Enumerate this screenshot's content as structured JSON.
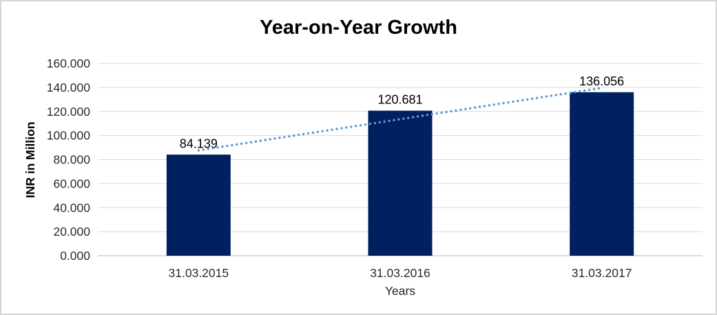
{
  "frame": {
    "background_color": "#FFFFFF",
    "border_color": "#D4D4D4"
  },
  "chart_data": {
    "type": "bar",
    "title": "Year-on-Year Growth",
    "xlabel": "Years",
    "ylabel": "INR in Million",
    "categories": [
      "31.03.2015",
      "31.03.2016",
      "31.03.2017"
    ],
    "values": [
      84.139,
      120.681,
      136.056
    ],
    "data_labels": [
      "84.139",
      "120.681",
      "136.056"
    ],
    "y_ticks": {
      "values": [
        0,
        20,
        40,
        60,
        80,
        100,
        120,
        140,
        160
      ],
      "labels": [
        "0.000",
        "20.000",
        "40.000",
        "60.000",
        "80.000",
        "100.000",
        "120.000",
        "140.000",
        "160.000"
      ]
    },
    "ylim": [
      0,
      160
    ],
    "grid": true,
    "legend_position": "none",
    "bar_color": "#002060",
    "gridline_color": "#D9D9D9",
    "axis_line_color": "#C3C3C3",
    "tick_label_color": "#2B2B2B",
    "data_label_color": "#000000",
    "trendline": {
      "type": "linear",
      "style": "dotted",
      "color": "#5B9BD5"
    }
  }
}
